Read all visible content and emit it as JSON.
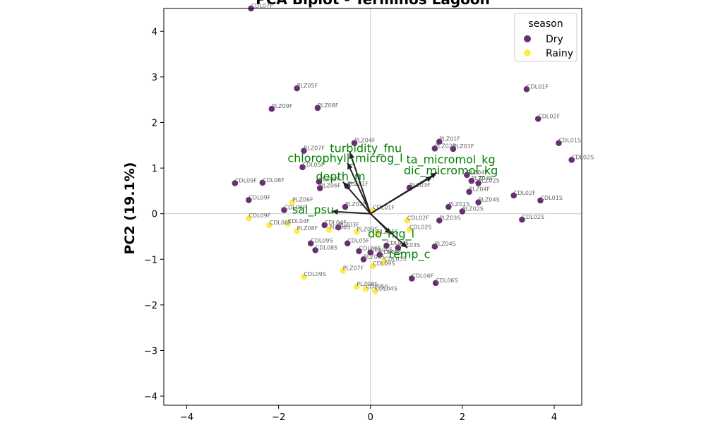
{
  "chart_data": {
    "type": "scatter",
    "title": "PCA Biplot - Términos Lagoon",
    "xlabel": "",
    "ylabel": "PC2 (19.1%)",
    "xlim": [
      -4.5,
      4.6
    ],
    "ylim": [
      -4.2,
      4.5
    ],
    "xticks": [
      -4,
      -2,
      0,
      2,
      4
    ],
    "yticks": [
      -4,
      -3,
      -2,
      -1,
      0,
      1,
      2,
      3,
      4
    ],
    "grid": false,
    "legend": {
      "title": "season",
      "placement": "top-right",
      "entries": [
        {
          "name": "Dry",
          "color": "#440154"
        },
        {
          "name": "Rainy",
          "color": "#fde725"
        }
      ]
    },
    "colors": {
      "Dry": "#440154",
      "Rainy": "#fde725",
      "loading": "#008000",
      "arrow": "#222222"
    },
    "series": [
      {
        "name": "Dry",
        "points": [
          {
            "x": -2.6,
            "y": 4.5,
            "label": "CDL07F"
          },
          {
            "x": -1.6,
            "y": 2.75,
            "label": "PLZ05F"
          },
          {
            "x": -2.15,
            "y": 2.3,
            "label": "PLZ09F"
          },
          {
            "x": -1.15,
            "y": 2.32,
            "label": "PLZ08F"
          },
          {
            "x": 3.4,
            "y": 2.73,
            "label": "CDL01F"
          },
          {
            "x": 3.65,
            "y": 2.08,
            "label": "CDL02F"
          },
          {
            "x": 4.1,
            "y": 1.55,
            "label": "CDL01S"
          },
          {
            "x": 4.38,
            "y": 1.18,
            "label": "CDL02S"
          },
          {
            "x": 1.5,
            "y": 1.58,
            "label": "PLZ01F"
          },
          {
            "x": 1.4,
            "y": 1.43,
            "label": "PLZ02F"
          },
          {
            "x": 1.8,
            "y": 1.42,
            "label": "PLZ01F"
          },
          {
            "x": -0.35,
            "y": 1.55,
            "label": "PLZ04F"
          },
          {
            "x": -1.45,
            "y": 1.38,
            "label": "PLZ07F"
          },
          {
            "x": -1.48,
            "y": 1.02,
            "label": "CDL05F"
          },
          {
            "x": -2.95,
            "y": 0.67,
            "label": "CDL09F"
          },
          {
            "x": -2.35,
            "y": 0.68,
            "label": "CDL08F"
          },
          {
            "x": -1.12,
            "y": 0.7,
            "label": "PLZ05F"
          },
          {
            "x": -1.1,
            "y": 0.56,
            "label": "PLZ06F"
          },
          {
            "x": -0.5,
            "y": 0.6,
            "label": "PLZ01F"
          },
          {
            "x": 0.85,
            "y": 0.57,
            "label": "PLZ03F"
          },
          {
            "x": 2.1,
            "y": 0.85,
            "label": "PLZ04F"
          },
          {
            "x": 2.2,
            "y": 0.72,
            "label": "PLZ03S"
          },
          {
            "x": 2.35,
            "y": 0.67,
            "label": "PLZ02S"
          },
          {
            "x": 2.15,
            "y": 0.48,
            "label": "PLZ04F"
          },
          {
            "x": 3.12,
            "y": 0.4,
            "label": "CDL02F"
          },
          {
            "x": 3.7,
            "y": 0.29,
            "label": "CDL01S"
          },
          {
            "x": 2.35,
            "y": 0.25,
            "label": "PLZ04S"
          },
          {
            "x": 1.7,
            "y": 0.15,
            "label": "PLZ01S"
          },
          {
            "x": 2.0,
            "y": 0.05,
            "label": "PLZ02S"
          },
          {
            "x": 3.3,
            "y": -0.13,
            "label": "CDL02S"
          },
          {
            "x": -2.65,
            "y": 0.3,
            "label": "CDL09F"
          },
          {
            "x": -1.88,
            "y": 0.08,
            "label": "CDL06F"
          },
          {
            "x": -0.55,
            "y": 0.15,
            "label": "PLZ02F"
          },
          {
            "x": 1.5,
            "y": -0.15,
            "label": "PLZ03S"
          },
          {
            "x": 1.4,
            "y": -0.72,
            "label": "PLZ04S"
          },
          {
            "x": -1.0,
            "y": -0.25,
            "label": "CDL04F"
          },
          {
            "x": -0.7,
            "y": -0.3,
            "label": "PLZ03F"
          },
          {
            "x": -1.3,
            "y": -0.65,
            "label": "CDL09S"
          },
          {
            "x": -1.2,
            "y": -0.8,
            "label": "CDL08S"
          },
          {
            "x": -0.5,
            "y": -0.65,
            "label": "CDL05F"
          },
          {
            "x": -0.25,
            "y": -0.82,
            "label": "CDL06S"
          },
          {
            "x": -0.15,
            "y": -1.0,
            "label": "PLZ05S"
          },
          {
            "x": 0.0,
            "y": -0.85,
            "label": "CDL04S"
          },
          {
            "x": 0.35,
            "y": -0.7,
            "label": "CDL07S"
          },
          {
            "x": 0.6,
            "y": -0.75,
            "label": "CDL03S"
          },
          {
            "x": 0.2,
            "y": -0.9,
            "label": "CDL05S"
          },
          {
            "x": 0.9,
            "y": -1.42,
            "label": "CDL06F"
          },
          {
            "x": 1.42,
            "y": -1.52,
            "label": "CDL06S"
          }
        ]
      },
      {
        "name": "Rainy",
        "points": [
          {
            "x": -1.7,
            "y": 0.25,
            "label": "PLZ06F"
          },
          {
            "x": -2.65,
            "y": -0.1,
            "label": "CDL09F"
          },
          {
            "x": -2.2,
            "y": -0.25,
            "label": "CDL06F"
          },
          {
            "x": -1.8,
            "y": -0.22,
            "label": "CDL04F"
          },
          {
            "x": -1.6,
            "y": -0.38,
            "label": "PLZ08F"
          },
          {
            "x": -0.9,
            "y": -0.35,
            "label": "PLZ06S"
          },
          {
            "x": -0.3,
            "y": -0.4,
            "label": "PLZ09S"
          },
          {
            "x": 0.05,
            "y": 0.08,
            "label": "CDL01F"
          },
          {
            "x": 0.8,
            "y": -0.15,
            "label": "CDL02F"
          },
          {
            "x": 0.85,
            "y": -0.35,
            "label": "CDL02S"
          },
          {
            "x": 0.15,
            "y": -0.45,
            "label": "PLZ05S"
          },
          {
            "x": 0.3,
            "y": -1.05,
            "label": "CDL03S"
          },
          {
            "x": 0.05,
            "y": -1.15,
            "label": "CDL09S"
          },
          {
            "x": -1.45,
            "y": -1.38,
            "label": "CDL09S"
          },
          {
            "x": -0.6,
            "y": -1.25,
            "label": "PLZ07F"
          },
          {
            "x": -0.3,
            "y": -1.6,
            "label": "PLZ08S"
          },
          {
            "x": -0.1,
            "y": -1.65,
            "label": "CDL05S"
          },
          {
            "x": 0.1,
            "y": -1.7,
            "label": "CDL04S"
          }
        ]
      }
    ],
    "loadings": [
      {
        "name": "turbidity_fnu",
        "x": -0.45,
        "y": 1.35
      },
      {
        "name": "chlorophyll_microg_l",
        "x": -0.5,
        "y": 1.12
      },
      {
        "name": "depth_m",
        "x": -0.6,
        "y": 0.7
      },
      {
        "name": "sal_psu",
        "x": -0.85,
        "y": 0.05
      },
      {
        "name": "ta_micromol_kg",
        "x": 1.45,
        "y": 0.9
      },
      {
        "name": "dic_micromol_kg",
        "x": 1.35,
        "y": 0.82
      },
      {
        "name": "do_mg_l",
        "x": 0.45,
        "y": -0.45
      },
      {
        "name": "temp_c",
        "x": 0.8,
        "y": -0.75
      }
    ],
    "loading_labels": [
      {
        "text": "turbidity_fnu",
        "x": -0.1,
        "y": 1.42
      },
      {
        "text": "chlorophyll_microg_l",
        "x": -0.55,
        "y": 1.2
      },
      {
        "text": "depth_m",
        "x": -0.65,
        "y": 0.8
      },
      {
        "text": "sal_psu",
        "x": -1.25,
        "y": 0.07
      },
      {
        "text": "ta_micromol_kg",
        "x": 1.75,
        "y": 1.17
      },
      {
        "text": "dic_micromol_kg",
        "x": 1.75,
        "y": 0.93
      },
      {
        "text": "do_mg_l",
        "x": 0.45,
        "y": -0.45
      },
      {
        "text": "temp_c",
        "x": 0.85,
        "y": -0.9
      }
    ]
  }
}
